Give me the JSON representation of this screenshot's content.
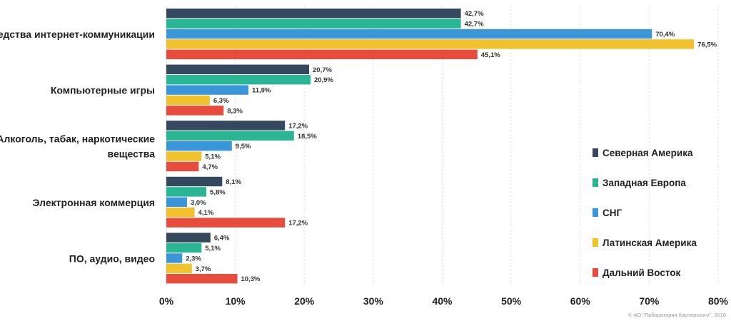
{
  "chart_data": {
    "type": "bar",
    "orientation": "horizontal",
    "categories": [
      [
        "Средства интернет-коммуникации"
      ],
      [
        "Компьютерные игры"
      ],
      [
        "Алкоголь, табак, наркотические",
        "вещества"
      ],
      [
        "Электронная коммерция"
      ],
      [
        "ПО, аудио, видео"
      ]
    ],
    "series": [
      {
        "name": "Северная Америка",
        "color": "#34495e",
        "values": [
          42.7,
          20.7,
          17.2,
          8.1,
          6.4
        ],
        "labels": [
          "42,7%",
          "20,7%",
          "17,2%",
          "8,1%",
          "6,4%"
        ]
      },
      {
        "name": "Западная Европа",
        "color": "#2ab695",
        "values": [
          42.7,
          20.9,
          18.5,
          5.8,
          5.1
        ],
        "labels": [
          "42,7%",
          "20,9%",
          "18,5%",
          "5,8%",
          "5,1%"
        ]
      },
      {
        "name": "СНГ",
        "color": "#3a96d9",
        "values": [
          70.4,
          11.9,
          9.5,
          3.0,
          2.3
        ],
        "labels": [
          "70,4%",
          "11,9%",
          "9,5%",
          "3,0%",
          "2,3%"
        ]
      },
      {
        "name": "Латинская Америка",
        "color": "#f2c12e",
        "values": [
          76.5,
          6.3,
          5.1,
          4.1,
          3.7
        ],
        "labels": [
          "76,5%",
          "6,3%",
          "5,1%",
          "4,1%",
          "3,7%"
        ]
      },
      {
        "name": "Дальний Восток",
        "color": "#e74c3c",
        "values": [
          45.1,
          8.3,
          4.7,
          17.2,
          10.3
        ],
        "labels": [
          "45,1%",
          "8,3%",
          "4,7%",
          "17,2%",
          "10,3%"
        ]
      }
    ],
    "x_ticks": [
      "0%",
      "10%",
      "20%",
      "30%",
      "40%",
      "50%",
      "60%",
      "70%",
      "80%"
    ],
    "xlim": [
      0,
      80
    ],
    "xlabel": "",
    "ylabel": "",
    "grid": "vertical dashed",
    "legend_position": "right"
  },
  "footer": {
    "credit": "© АО \"Лаборатория Касперского\", 2016"
  }
}
